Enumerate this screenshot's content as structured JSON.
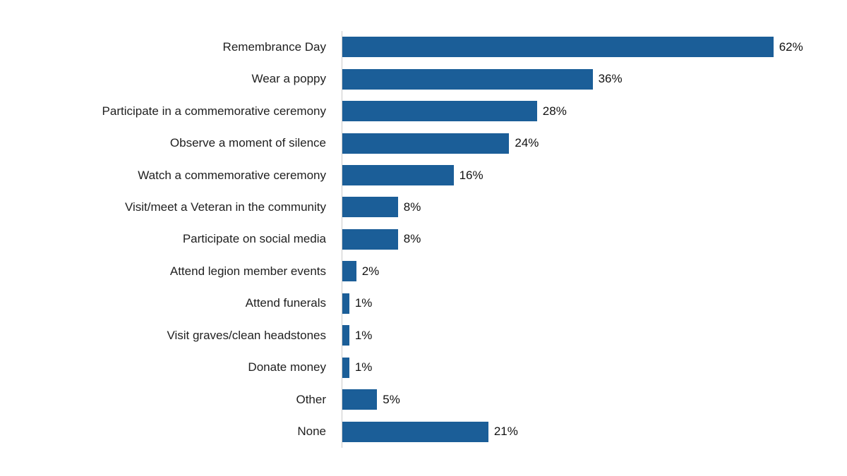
{
  "chart_data": {
    "type": "bar",
    "orientation": "horizontal",
    "title": "",
    "xlabel": "",
    "ylabel": "",
    "grid": false,
    "legend": false,
    "xlim": [
      0,
      72
    ],
    "value_suffix": "%",
    "bar_color": "#1b5e98",
    "axis_line_color": "#c9c9c9",
    "label_color": "#1f1f1f",
    "categories": [
      "Remembrance Day",
      "Wear a poppy",
      "Participate in a commemorative ceremony",
      "Observe a moment of silence",
      "Watch a commemorative ceremony",
      "Visit/meet a Veteran in the community",
      "Participate on social media",
      "Attend legion member events",
      "Attend funerals",
      "Visit graves/clean headstones",
      "Donate money",
      "Other",
      "None"
    ],
    "values": [
      62,
      36,
      28,
      24,
      16,
      8,
      8,
      2,
      1,
      1,
      1,
      5,
      21
    ],
    "value_labels": [
      "62%",
      "36%",
      "28%",
      "24%",
      "16%",
      "8%",
      "8%",
      "2%",
      "1%",
      "1%",
      "1%",
      "5%",
      "21%"
    ]
  }
}
